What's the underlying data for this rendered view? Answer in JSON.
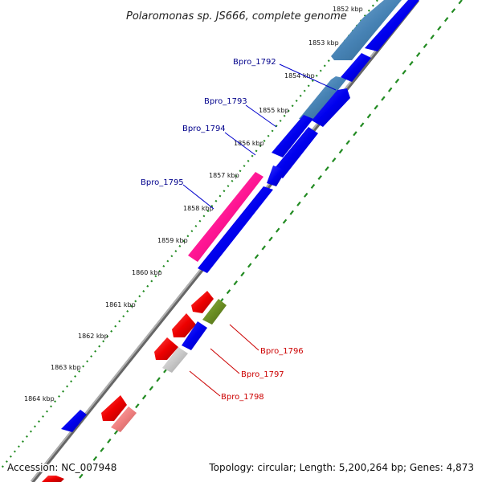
{
  "title": "Polaromonas sp. JS666, complete genome",
  "footer": {
    "accession": "Accession: NC_007948",
    "summary": "Topology: circular; Length: 5,200,264 bp; Genes: 4,873"
  },
  "kbp_labels": [
    "1852 kbp",
    "1853 kbp",
    "1854 kbp",
    "1855 kbp",
    "1856 kbp",
    "1857 kbp",
    "1858 kbp",
    "1859 kbp",
    "1860 kbp",
    "1861 kbp",
    "1862 kbp",
    "1863 kbp",
    "1864 kbp"
  ],
  "genes": [
    {
      "name": "Bpro_1792",
      "color": "#00008b"
    },
    {
      "name": "Bpro_1793",
      "color": "#00008b"
    },
    {
      "name": "Bpro_1794",
      "color": "#00008b"
    },
    {
      "name": "Bpro_1795",
      "color": "#00008b"
    },
    {
      "name": "Bpro_1796",
      "color": "#cc0000"
    },
    {
      "name": "Bpro_1797",
      "color": "#cc0000"
    },
    {
      "name": "Bpro_1798",
      "color": "#cc0000"
    }
  ],
  "colors": {
    "forward_cds": "#0000ee",
    "forward_cds_light": "#4682b4",
    "reverse_cds": "#ee0000",
    "highlight_pink": "#ff1493",
    "olive_feature": "#6b8e23",
    "grey_feature": "#c8c8c8",
    "light_red_feature": "#f08080",
    "backbone": "#888888",
    "tick_green": "#228b22"
  }
}
